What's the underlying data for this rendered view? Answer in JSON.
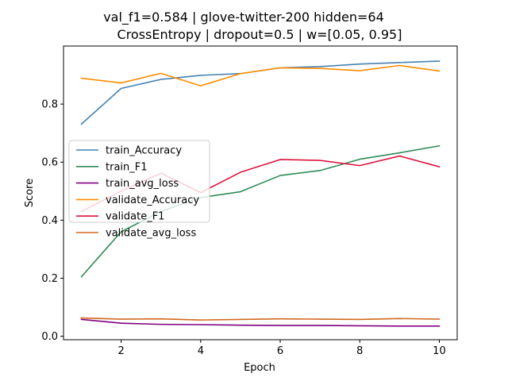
{
  "chart_data": {
    "type": "line",
    "title_line1": "val_f1=0.584 | glove-twitter-200  hidden=64",
    "title_line2": "CrossEntropy | dropout=0.5 | w=[0.05, 0.95]",
    "xlabel": "Epoch",
    "ylabel": "Score",
    "xlim": [
      0.55,
      10.45
    ],
    "ylim": [
      -0.012,
      1.0
    ],
    "x_ticks": [
      2,
      4,
      6,
      8,
      10
    ],
    "x_tick_labels": [
      "2",
      "4",
      "6",
      "8",
      "10"
    ],
    "y_ticks": [
      0.0,
      0.2,
      0.4,
      0.6,
      0.8
    ],
    "y_tick_labels": [
      "0.0",
      "0.2",
      "0.4",
      "0.6",
      "0.8"
    ],
    "grid": false,
    "legend_position": "center-left",
    "x": [
      1,
      2,
      3,
      4,
      5,
      6,
      7,
      8,
      9,
      10
    ],
    "series": [
      {
        "name": "train_Accuracy",
        "color": "#4682b4",
        "values": [
          0.731,
          0.854,
          0.885,
          0.899,
          0.905,
          0.925,
          0.929,
          0.938,
          0.943,
          0.948
        ]
      },
      {
        "name": "train_F1",
        "color": "#2e8b57",
        "values": [
          0.205,
          0.36,
          0.43,
          0.478,
          0.498,
          0.554,
          0.571,
          0.61,
          0.632,
          0.656
        ]
      },
      {
        "name": "train_avg_loss",
        "color": "#800080",
        "values": [
          0.058,
          0.045,
          0.041,
          0.04,
          0.038,
          0.037,
          0.037,
          0.036,
          0.035,
          0.035
        ]
      },
      {
        "name": "validate_Accuracy",
        "color": "#ff8c00",
        "values": [
          0.889,
          0.873,
          0.906,
          0.863,
          0.905,
          0.925,
          0.923,
          0.915,
          0.933,
          0.914
        ]
      },
      {
        "name": "validate_F1",
        "color": "#dc143c",
        "values": [
          0.43,
          0.5,
          0.562,
          0.495,
          0.565,
          0.609,
          0.606,
          0.588,
          0.621,
          0.584
        ]
      },
      {
        "name": "validate_avg_loss",
        "color": "#d2691e",
        "values": [
          0.063,
          0.059,
          0.06,
          0.056,
          0.058,
          0.06,
          0.059,
          0.058,
          0.061,
          0.059
        ]
      }
    ]
  }
}
